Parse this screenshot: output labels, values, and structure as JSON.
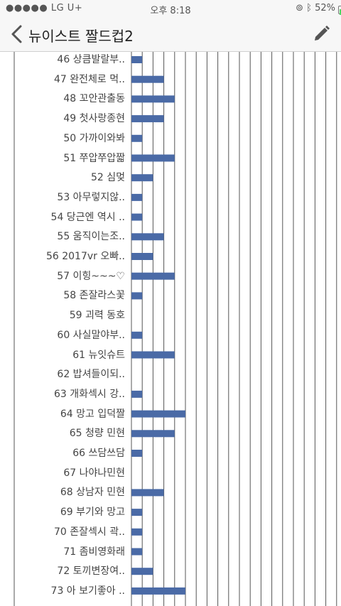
{
  "status": {
    "carrier": "●●●●● LG U+",
    "time": "오후 8:18",
    "battery_percent": "52%",
    "battery_level": 0.52
  },
  "nav": {
    "title": "뉴이스트 짤드컵2"
  },
  "colors": {
    "bar": "#4a6aa6",
    "grid": "#555555"
  },
  "chart_data": {
    "type": "bar",
    "orientation": "horizontal",
    "categories": [
      "46 상큼발랄부..",
      "47 완전체로 먹..",
      "48 꼬안관출동",
      "49 첫사랑종현",
      "50 가까이와봐",
      "51 쭈압쭈압짧",
      "52 심멎",
      "53 아무렇지않..",
      "54 당근엔 역시 ..",
      "55 움직이는조..",
      "56 2017vr 오빠..",
      "57 이힝~~~♡",
      "58 존잘라스꽃",
      "59 괴력 동호",
      "60 사실말야부..",
      "61 뉴잇슈트",
      "62 밥셔들이되..",
      "63 개화섹시 강..",
      "64 망고 입덕짤",
      "65 청량 민현",
      "66 쓰담쓰담",
      "67 나야나민현",
      "68 상남자 민현",
      "69 부기와 망고",
      "70 존잘섹시 곽..",
      "71 좀비영화래",
      "72 토끼변장여..",
      "73 아 보기좋아 .."
    ],
    "values": [
      1,
      3,
      4,
      3,
      1,
      4,
      2,
      1,
      1,
      3,
      2,
      4,
      1,
      0,
      1,
      4,
      0,
      1,
      5,
      4,
      1,
      0,
      3,
      1,
      1,
      1,
      2,
      5
    ],
    "xlim": [
      0,
      19
    ],
    "grid": true
  }
}
